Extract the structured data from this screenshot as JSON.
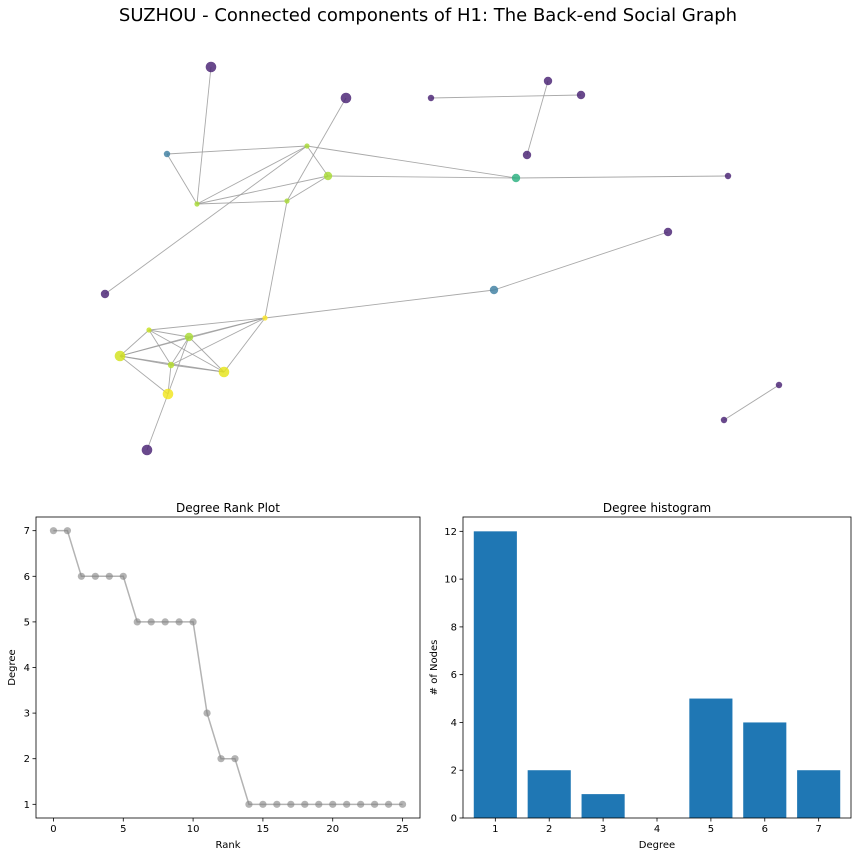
{
  "suptitle": "SUZHOU - Connected components of H1: The Back-end Social Graph",
  "chart_data": [
    {
      "type": "network",
      "nodes": [
        {
          "id": "n0",
          "color": "#482173",
          "size": "large"
        },
        {
          "id": "n1",
          "color": "#482173",
          "size": "large"
        },
        {
          "id": "n2",
          "color": "#482173",
          "size": "small"
        },
        {
          "id": "n3",
          "color": "#482173",
          "size": "medium"
        },
        {
          "id": "n4",
          "color": "#482173",
          "size": "medium"
        },
        {
          "id": "n5",
          "color": "#482173",
          "size": "medium"
        },
        {
          "id": "n6",
          "color": "#3e7fa1",
          "size": "small"
        },
        {
          "id": "n7",
          "color": "#a8db34",
          "size": "tiny"
        },
        {
          "id": "n8",
          "color": "#a8db34",
          "size": "medium"
        },
        {
          "id": "n9",
          "color": "#2ab07f",
          "size": "medium"
        },
        {
          "id": "n10",
          "color": "#482173",
          "size": "small"
        },
        {
          "id": "n11",
          "color": "#a8db34",
          "size": "tiny"
        },
        {
          "id": "n12",
          "color": "#a8db34",
          "size": "tiny"
        },
        {
          "id": "n13",
          "color": "#482173",
          "size": "medium"
        },
        {
          "id": "n14",
          "color": "#482173",
          "size": "medium"
        },
        {
          "id": "n15",
          "color": "#3e7fa1",
          "size": "medium"
        },
        {
          "id": "n16",
          "color": "#fde725",
          "size": "tiny"
        },
        {
          "id": "n17",
          "color": "#c7e020",
          "size": "tiny"
        },
        {
          "id": "n18",
          "color": "#a8db34",
          "size": "medium"
        },
        {
          "id": "n19",
          "color": "#d2e21b",
          "size": "large"
        },
        {
          "id": "n20",
          "color": "#b5de2b",
          "size": "small"
        },
        {
          "id": "n21",
          "color": "#e5e419",
          "size": "large"
        },
        {
          "id": "n22",
          "color": "#f1e51d",
          "size": "large"
        },
        {
          "id": "n23",
          "color": "#482173",
          "size": "large"
        },
        {
          "id": "n24",
          "color": "#482173",
          "size": "small"
        },
        {
          "id": "n25",
          "color": "#482173",
          "size": "small"
        }
      ],
      "edges": [
        [
          "n0",
          "n12"
        ],
        [
          "n1",
          "n11"
        ],
        [
          "n2",
          "n3"
        ],
        [
          "n4",
          "n5"
        ],
        [
          "n6",
          "n12"
        ],
        [
          "n6",
          "n7"
        ],
        [
          "n7",
          "n12"
        ],
        [
          "n7",
          "n8"
        ],
        [
          "n12",
          "n8"
        ],
        [
          "n11",
          "n12"
        ],
        [
          "n11",
          "n8"
        ],
        [
          "n8",
          "n9"
        ],
        [
          "n7",
          "n9"
        ],
        [
          "n9",
          "n10"
        ],
        [
          "n7",
          "n13"
        ],
        [
          "n11",
          "n16"
        ],
        [
          "n16",
          "n15"
        ],
        [
          "n15",
          "n14"
        ],
        [
          "n16",
          "n17"
        ],
        [
          "n16",
          "n18"
        ],
        [
          "n16",
          "n19"
        ],
        [
          "n16",
          "n20"
        ],
        [
          "n16",
          "n21"
        ],
        [
          "n17",
          "n18"
        ],
        [
          "n17",
          "n19"
        ],
        [
          "n17",
          "n20"
        ],
        [
          "n17",
          "n21"
        ],
        [
          "n18",
          "n19"
        ],
        [
          "n18",
          "n20"
        ],
        [
          "n18",
          "n21"
        ],
        [
          "n18",
          "n22"
        ],
        [
          "n19",
          "n20"
        ],
        [
          "n19",
          "n21"
        ],
        [
          "n19",
          "n22"
        ],
        [
          "n20",
          "n21"
        ],
        [
          "n20",
          "n22"
        ],
        [
          "n22",
          "n23"
        ],
        [
          "n24",
          "n25"
        ]
      ]
    },
    {
      "type": "line",
      "title": "Degree Rank Plot",
      "xlabel": "Rank",
      "ylabel": "Degree",
      "x": [
        0,
        1,
        2,
        3,
        4,
        5,
        6,
        7,
        8,
        9,
        10,
        11,
        12,
        13,
        14,
        15,
        16,
        17,
        18,
        19,
        20,
        21,
        22,
        23,
        24,
        25
      ],
      "y": [
        7,
        7,
        6,
        6,
        6,
        6,
        5,
        5,
        5,
        5,
        5,
        3,
        2,
        2,
        1,
        1,
        1,
        1,
        1,
        1,
        1,
        1,
        1,
        1,
        1,
        1
      ],
      "xticks": [
        "0",
        "5",
        "10",
        "15",
        "20",
        "25"
      ],
      "yticks": [
        "1",
        "2",
        "3",
        "4",
        "5",
        "6",
        "7"
      ],
      "xlim": [
        -1.25,
        26.25
      ],
      "ylim": [
        0.7,
        7.3
      ],
      "color": "#808080"
    },
    {
      "type": "bar",
      "title": "Degree histogram",
      "xlabel": "Degree",
      "ylabel": "# of Nodes",
      "categories": [
        "1",
        "2",
        "3",
        "4",
        "5",
        "6",
        "7"
      ],
      "values": [
        12,
        2,
        1,
        0,
        5,
        4,
        2
      ],
      "yticks": [
        "0",
        "2",
        "4",
        "6",
        "8",
        "10",
        "12"
      ],
      "ylim": [
        0,
        12.6
      ],
      "color": "#1f77b4"
    }
  ]
}
